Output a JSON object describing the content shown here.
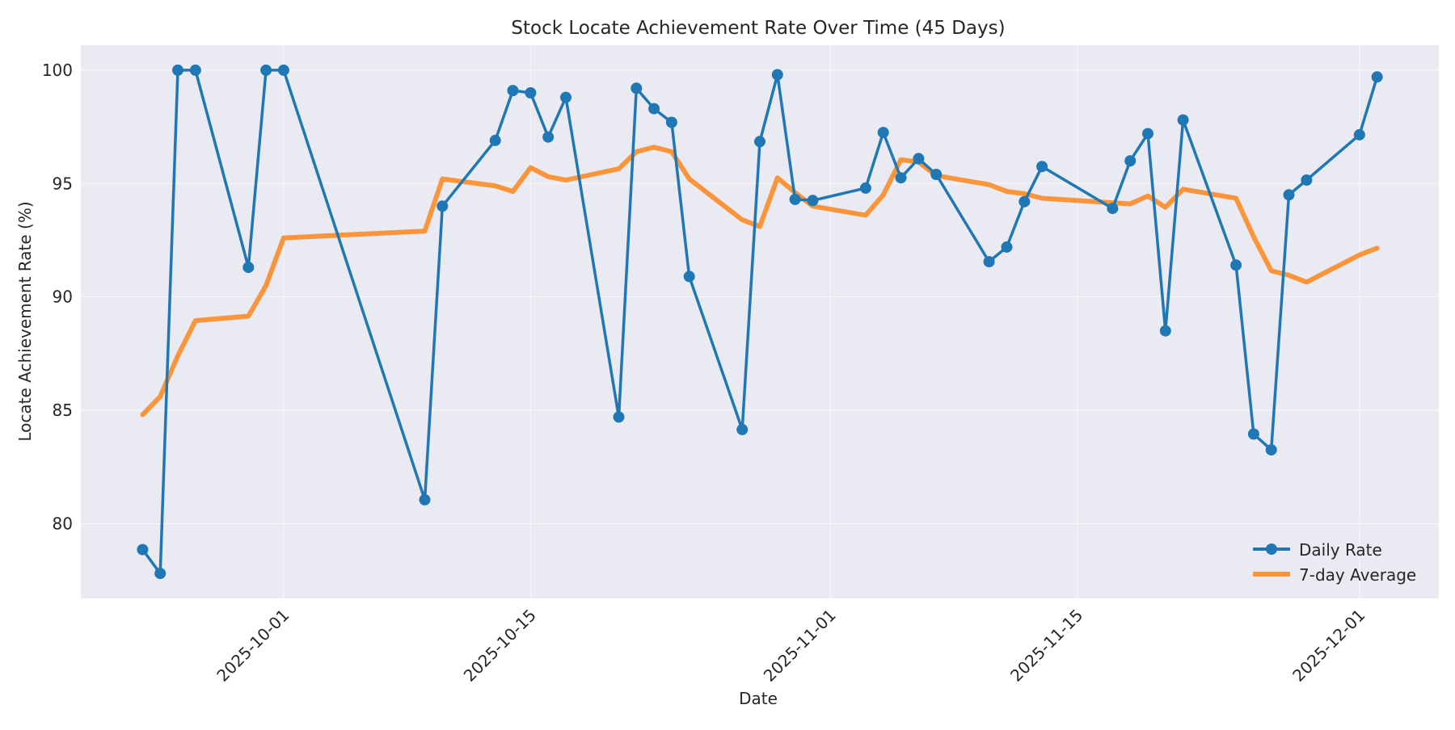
{
  "chart_data": {
    "type": "line",
    "title": "Stock Locate Achievement Rate Over Time (45 Days)",
    "xlabel": "Date",
    "ylabel": "Locate Achievement Rate (%)",
    "ylim": [
      76.7,
      101.1
    ],
    "yticks": [
      80,
      85,
      90,
      95,
      100
    ],
    "xlim": [
      "2025-09-19.5",
      "2025-12-05.5"
    ],
    "xticks": [
      "2025-10-01",
      "2025-10-15",
      "2025-11-01",
      "2025-11-15",
      "2025-12-01"
    ],
    "grid": true,
    "legend_position": "lower right",
    "x": [
      "2025-09-23",
      "2025-09-24",
      "2025-09-25",
      "2025-09-26",
      "2025-09-29",
      "2025-09-30",
      "2025-10-01",
      "2025-10-09",
      "2025-10-10",
      "2025-10-13",
      "2025-10-14",
      "2025-10-15",
      "2025-10-16",
      "2025-10-17",
      "2025-10-20",
      "2025-10-21",
      "2025-10-22",
      "2025-10-23",
      "2025-10-24",
      "2025-10-27",
      "2025-10-28",
      "2025-10-29",
      "2025-10-30",
      "2025-10-31",
      "2025-11-03",
      "2025-11-04",
      "2025-11-05",
      "2025-11-06",
      "2025-11-07",
      "2025-11-10",
      "2025-11-11",
      "2025-11-12",
      "2025-11-13",
      "2025-11-17",
      "2025-11-18",
      "2025-11-19",
      "2025-11-20",
      "2025-11-21",
      "2025-11-24",
      "2025-11-25",
      "2025-11-26",
      "2025-11-27",
      "2025-11-28",
      "2025-12-01",
      "2025-12-02"
    ],
    "series": [
      {
        "name": "Daily Rate",
        "color": "#1f77b4",
        "marker": "circle",
        "values": [
          78.85,
          77.8,
          100.0,
          100.0,
          91.3,
          100.0,
          100.0,
          81.05,
          94.0,
          96.9,
          99.1,
          99.0,
          97.05,
          98.8,
          84.7,
          99.2,
          98.3,
          97.7,
          90.9,
          84.15,
          96.85,
          99.8,
          94.3,
          94.25,
          94.8,
          97.25,
          95.25,
          96.1,
          95.4,
          91.55,
          92.2,
          94.2,
          95.75,
          93.9,
          96.0,
          97.2,
          88.5,
          97.8,
          91.4,
          83.95,
          83.25,
          94.5,
          95.15,
          97.15,
          99.7
        ]
      },
      {
        "name": "7-day Average",
        "color": "#ff7f0e",
        "marker": "none",
        "values": [
          84.8,
          85.6,
          87.4,
          88.95,
          89.15,
          90.5,
          92.6,
          92.9,
          95.2,
          94.9,
          94.65,
          95.7,
          95.3,
          95.15,
          95.65,
          96.4,
          96.6,
          96.4,
          95.2,
          93.4,
          93.1,
          95.25,
          94.6,
          94.0,
          93.6,
          94.5,
          96.05,
          95.95,
          95.35,
          94.95,
          94.65,
          94.55,
          94.35,
          94.15,
          94.1,
          94.45,
          93.95,
          94.75,
          94.35,
          92.65,
          91.15,
          90.95,
          90.65,
          91.85,
          92.15
        ]
      }
    ]
  },
  "legend": {
    "items": [
      {
        "label": "Daily Rate",
        "color": "#1f77b4"
      },
      {
        "label": "7-day Average",
        "color": "#ff7f0e"
      }
    ]
  },
  "style": {
    "plot_bg": "#eaeaf2",
    "grid_color": "#f4f4f8",
    "daily_color": "#1f77b4",
    "avg_color": "#ff7f0e"
  }
}
